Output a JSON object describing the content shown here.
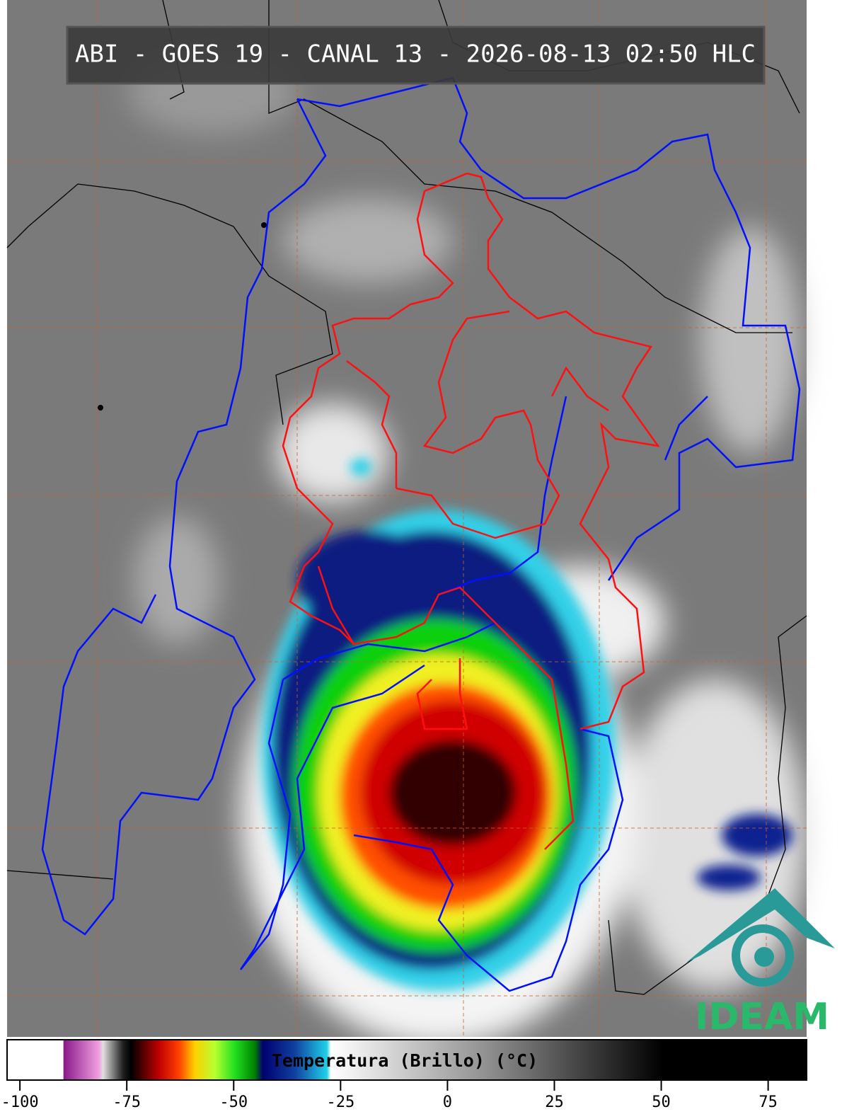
{
  "header": {
    "title": "ABI - GOES 19 - CANAL 13 - 2026-08-13 02:50 HLC"
  },
  "colorbar": {
    "label": "Temperatura (Brillo) (°C)",
    "ticks": [
      -100,
      -75,
      -50,
      -25,
      0,
      25,
      50,
      75
    ],
    "range": [
      -103,
      84
    ]
  },
  "logo": {
    "text": "IDEAM"
  }
}
